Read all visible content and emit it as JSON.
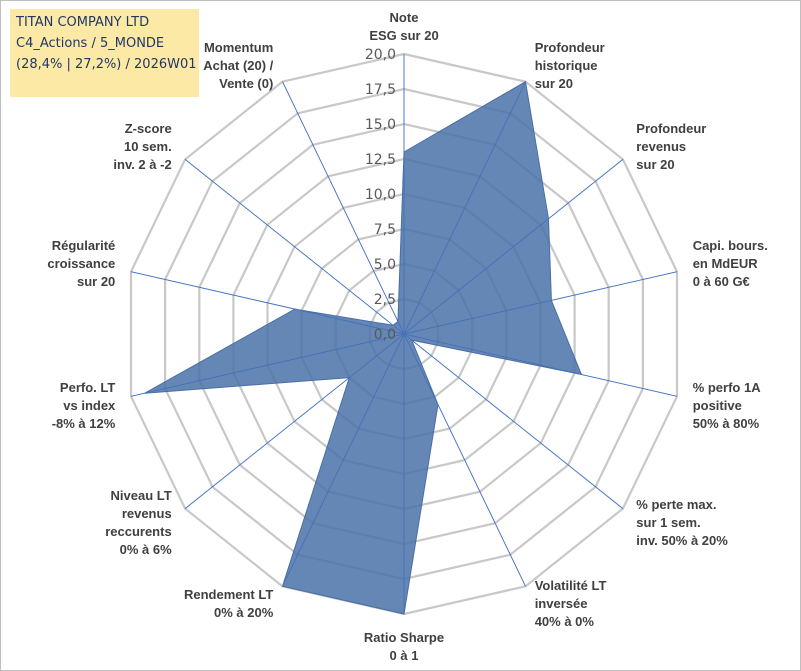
{
  "header": {
    "line1": "TITAN COMPANY LTD",
    "line2": "C4_Actions / 5_MONDE",
    "line3": "(28,4% | 27,2%) / 2026W01"
  },
  "colors": {
    "series_fill": "#4a72a8",
    "series_stroke": "#4a6fa5",
    "grid": "#c8c8c8",
    "spokes": "#4472c4",
    "title_bg": "#fce9a6"
  },
  "chart_data": {
    "type": "radar",
    "title": "TITAN COMPANY LTD",
    "rmax": 20,
    "ticks": [
      0,
      2.5,
      5,
      7.5,
      10,
      12.5,
      15,
      17.5,
      20
    ],
    "tick_labels": [
      "0,0",
      "2,5",
      "5,0",
      "7,5",
      "10,0",
      "12,5",
      "15,0",
      "17,5",
      "20,0"
    ],
    "axes": [
      {
        "label": [
          "Note",
          "ESG sur 20"
        ],
        "value": 13.0
      },
      {
        "label": [
          "Profondeur",
          "historique",
          "sur 20"
        ],
        "value": 20.0
      },
      {
        "label": [
          "Profondeur",
          "revenus",
          "sur 20"
        ],
        "value": 13.2
      },
      {
        "label": [
          "Capi. bours.",
          "en MdEUR",
          "0 à 60 G€"
        ],
        "value": 10.8
      },
      {
        "label": [
          "% perfo 1A",
          "positive",
          "50% à 80%"
        ],
        "value": 13.0
      },
      {
        "label": [
          "% perte max.",
          "sur 1 sem.",
          "inv. 50% à 20%"
        ],
        "value": 0.7
      },
      {
        "label": [
          "Volatilité LT",
          "inversée",
          "40% à 0%"
        ],
        "value": 5.6
      },
      {
        "label": [
          "Ratio Sharpe",
          "0 à 1"
        ],
        "value": 20.0
      },
      {
        "label": [
          "Rendement LT",
          "0% à 20%"
        ],
        "value": 20.0
      },
      {
        "label": [
          "Niveau LT",
          "revenus",
          "reccurents",
          "0% à 6%"
        ],
        "value": 5.0
      },
      {
        "label": [
          "Perfo. LT",
          "vs index",
          "-8% à 12%"
        ],
        "value": 19.0
      },
      {
        "label": [
          "Régularité",
          "croissance",
          "sur 20"
        ],
        "value": 8.0
      },
      {
        "label": [
          "Z-score",
          "10 sem.",
          "inv. 2 à -2"
        ],
        "value": 1.0
      },
      {
        "label": [
          "Momentum",
          "Achat (20) /",
          "Vente (0)"
        ],
        "value": 1.0
      }
    ]
  }
}
